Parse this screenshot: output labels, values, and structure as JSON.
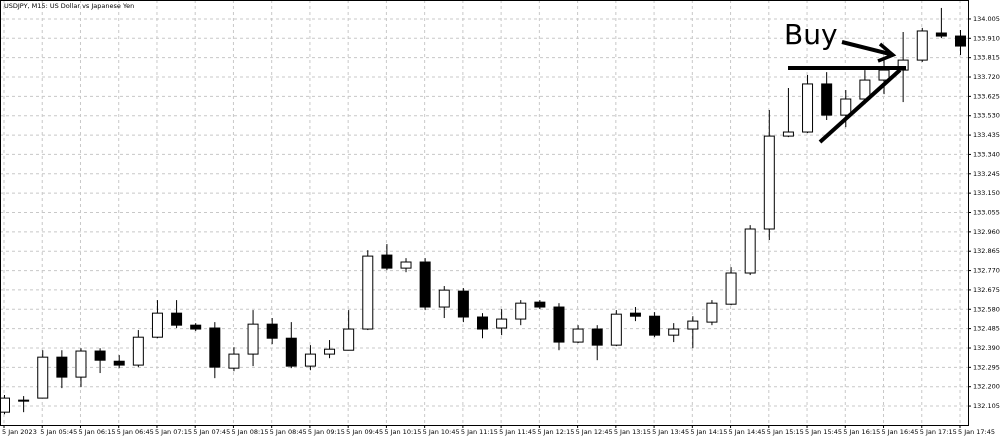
{
  "chart_data": {
    "type": "candlestick",
    "title": "USDJPY, M15: US Dollar vs Japanese Yen",
    "annotation": "Buy",
    "categories": [
      "5 Jan 2023",
      null,
      "5 Jan 05:45",
      null,
      "5 Jan 06:15",
      null,
      "5 Jan 06:45",
      null,
      "5 Jan 07:15",
      null,
      "5 Jan 07:45",
      null,
      "5 Jan 08:15",
      null,
      "5 Jan 08:45",
      null,
      "5 Jan 09:15",
      null,
      "5 Jan 09:45",
      null,
      "5 Jan 10:15",
      null,
      "5 Jan 10:45",
      null,
      "5 Jan 11:15",
      null,
      "5 Jan 11:45",
      null,
      "5 Jan 12:15",
      null,
      "5 Jan 12:45",
      null,
      "5 Jan 13:15",
      null,
      "5 Jan 13:45",
      null,
      "5 Jan 14:15",
      null,
      "5 Jan 14:45",
      null,
      "5 Jan 15:15",
      null,
      "5 Jan 15:45",
      null,
      "5 Jan 16:15",
      null,
      "5 Jan 16:45",
      null,
      "5 Jan 17:15",
      null,
      "5 Jan 17:45"
    ],
    "open": [
      132.075,
      132.134,
      132.144,
      132.345,
      132.247,
      132.375,
      132.325,
      132.306,
      132.443,
      132.561,
      132.502,
      132.488,
      132.291,
      132.36,
      132.507,
      132.438,
      132.301,
      132.36,
      132.379,
      132.483,
      132.846,
      132.782,
      132.812,
      132.591,
      132.669,
      132.542,
      132.488,
      132.532,
      132.615,
      132.591,
      132.419,
      132.483,
      132.404,
      132.561,
      132.546,
      132.453,
      132.483,
      132.517,
      132.605,
      132.758,
      132.974,
      133.43,
      133.45,
      133.686,
      133.533,
      133.612,
      133.705,
      133.754,
      133.803,
      133.936,
      133.921
    ],
    "high": [
      132.159,
      132.154,
      132.379,
      132.379,
      132.389,
      132.389,
      132.355,
      132.478,
      132.625,
      132.625,
      132.512,
      132.517,
      132.394,
      132.576,
      132.537,
      132.517,
      132.404,
      132.429,
      132.576,
      132.87,
      132.9,
      132.831,
      132.831,
      132.694,
      132.684,
      132.561,
      132.581,
      132.625,
      132.625,
      132.61,
      132.502,
      132.502,
      132.576,
      132.591,
      132.566,
      132.512,
      132.546,
      132.625,
      132.787,
      132.993,
      133.558,
      133.666,
      133.73,
      133.744,
      133.656,
      133.754,
      133.803,
      133.941,
      133.961,
      134.059,
      133.951
    ],
    "low": [
      132.065,
      132.075,
      132.144,
      132.193,
      132.198,
      132.267,
      132.291,
      132.296,
      132.438,
      132.488,
      132.473,
      132.242,
      132.276,
      132.301,
      132.409,
      132.291,
      132.281,
      132.34,
      132.379,
      132.478,
      132.772,
      132.762,
      132.576,
      132.537,
      132.517,
      132.438,
      132.453,
      132.502,
      132.581,
      132.379,
      132.414,
      132.33,
      132.399,
      132.522,
      132.443,
      132.419,
      132.389,
      132.502,
      132.6,
      132.748,
      132.92,
      133.425,
      133.445,
      133.509,
      133.474,
      133.587,
      133.636,
      133.597,
      133.794,
      133.911,
      133.828
    ],
    "close": [
      132.144,
      132.129,
      132.345,
      132.247,
      132.375,
      132.33,
      132.306,
      132.443,
      132.561,
      132.502,
      132.483,
      132.296,
      132.36,
      132.507,
      132.438,
      132.301,
      132.36,
      132.384,
      132.483,
      132.841,
      132.782,
      132.812,
      132.591,
      132.674,
      132.542,
      132.483,
      132.532,
      132.61,
      132.591,
      132.419,
      132.483,
      132.404,
      132.556,
      132.546,
      132.453,
      132.483,
      132.522,
      132.61,
      132.758,
      132.974,
      133.43,
      133.45,
      133.686,
      133.533,
      133.612,
      133.705,
      133.754,
      133.803,
      133.946,
      133.921,
      133.872
    ],
    "up_color": "#ffffff",
    "down_color": "#000000",
    "ylim": [
      132.012,
      134.098
    ],
    "yticks": [
      134.005,
      {
        "value": 133.91,
        "label": "133.910"
      },
      133.815,
      {
        "value": 133.72,
        "label": "133.720"
      },
      133.625,
      {
        "value": 133.53,
        "label": "133.530"
      },
      133.435,
      {
        "value": 133.34,
        "label": "133.340"
      },
      133.245,
      {
        "value": 133.15,
        "label": "133.150"
      },
      133.055,
      {
        "value": 132.96,
        "label": "132.960"
      },
      132.865,
      {
        "value": 132.77,
        "label": "132.770"
      },
      132.675,
      {
        "value": 132.58,
        "label": "132.580"
      },
      132.485,
      {
        "value": 132.39,
        "label": "132.390"
      },
      132.295,
      {
        "value": 132.2,
        "label": "132.200"
      },
      132.105
    ],
    "grid": true
  }
}
